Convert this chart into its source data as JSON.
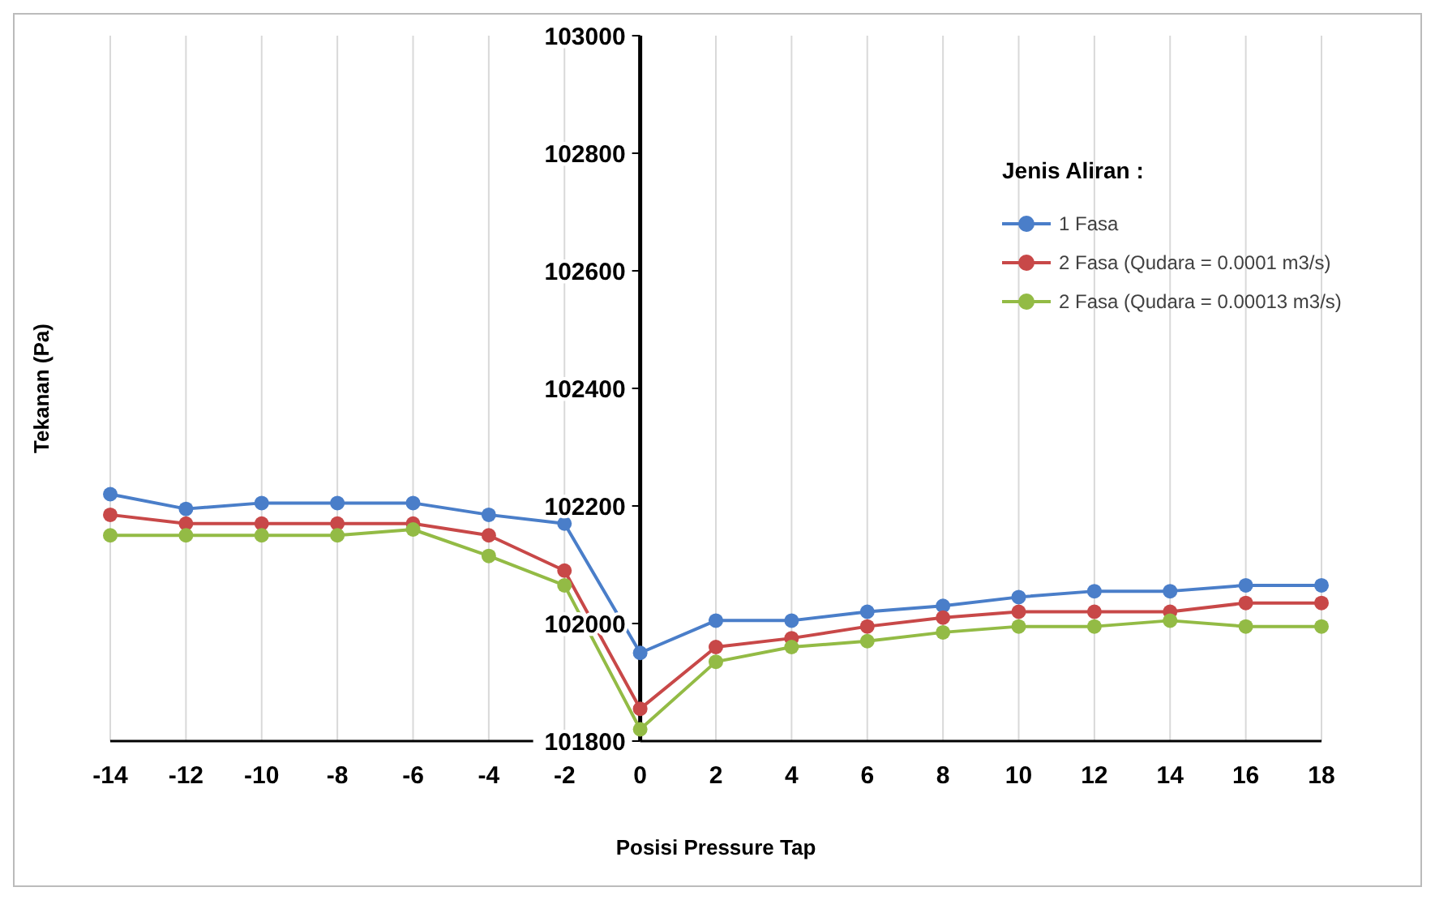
{
  "chart_data": {
    "type": "line",
    "xlabel": "Posisi Pressure Tap",
    "ylabel": "Tekanan (Pa)",
    "legend_title": "Jenis Aliran :",
    "x": [
      -14,
      -12,
      -10,
      -8,
      -6,
      -4,
      -2,
      0,
      2,
      4,
      6,
      8,
      10,
      12,
      14,
      16,
      18
    ],
    "xlim": [
      -14,
      18
    ],
    "xticks": [
      -14,
      -12,
      -10,
      -8,
      -6,
      -4,
      -2,
      0,
      2,
      4,
      6,
      8,
      10,
      12,
      14,
      16,
      18
    ],
    "ylim": [
      101800,
      103000
    ],
    "yticks": [
      101800,
      102000,
      102200,
      102400,
      102600,
      102800,
      103000
    ],
    "grid": "x",
    "legend": "top right",
    "marker": "circle",
    "line_style": "solid",
    "series": [
      {
        "name": "1 Fasa",
        "color": "#4a7ec9",
        "values": [
          102220,
          102195,
          102205,
          102205,
          102205,
          102185,
          102170,
          101950,
          102005,
          102005,
          102020,
          102030,
          102045,
          102055,
          102055,
          102065,
          102065
        ]
      },
      {
        "name": "2 Fasa (Qudara = 0.0001 m3/s)",
        "color": "#c84848",
        "values": [
          102185,
          102170,
          102170,
          102170,
          102170,
          102150,
          102090,
          101855,
          101960,
          101975,
          101995,
          102010,
          102020,
          102020,
          102020,
          102035,
          102035
        ]
      },
      {
        "name": "2 Fasa (Qudara = 0.00013 m3/s)",
        "color": "#93bb45",
        "values": [
          102150,
          102150,
          102150,
          102150,
          102160,
          102115,
          102065,
          101820,
          101935,
          101960,
          101970,
          101985,
          101995,
          101995,
          102005,
          101995,
          101995
        ]
      }
    ]
  }
}
